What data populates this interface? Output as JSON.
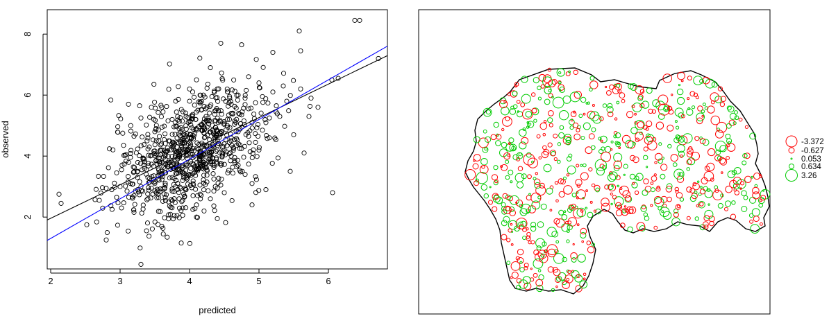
{
  "chart_data": [
    {
      "type": "scatter",
      "title": "",
      "xlabel": "predicted",
      "ylabel": "observed",
      "xlim": [
        1.95,
        6.85
      ],
      "ylim": [
        0.3,
        8.8
      ],
      "x_ticks": [
        2,
        3,
        4,
        5,
        6
      ],
      "y_ticks": [
        2,
        4,
        6,
        8
      ],
      "grid": false,
      "point_style": "open-circle",
      "point_color": "#000000",
      "series": [
        {
          "values": [
            [
              6.38,
              8.45
            ],
            [
              6.45,
              8.45
            ],
            [
              6.72,
              7.2
            ],
            [
              5.58,
              8.1
            ],
            [
              4.45,
              7.7
            ],
            [
              4.75,
              7.65
            ],
            [
              5.2,
              7.4
            ],
            [
              5.6,
              7.45
            ],
            [
              6.05,
              6.5
            ],
            [
              6.06,
              2.8
            ],
            [
              3.3,
              0.45
            ],
            [
              3.88,
              1.15
            ],
            [
              2.12,
              2.75
            ],
            [
              2.15,
              2.45
            ],
            [
              2.52,
              1.75
            ],
            [
              2.8,
              1.25
            ],
            [
              3.12,
              5.7
            ],
            [
              3.3,
              5.25
            ],
            [
              3.45,
              5.6
            ],
            [
              5.4,
              5.8
            ],
            [
              5.3,
              5.3
            ],
            [
              5.85,
              5.6
            ],
            [
              5.72,
              5.3
            ],
            [
              4.55,
              6.1
            ],
            [
              4.1,
              6.5
            ],
            [
              4.3,
              6.9
            ],
            [
              3.6,
              5.6
            ],
            [
              3.75,
              5.2
            ],
            [
              3.05,
              4.35
            ],
            [
              3.2,
              4.65
            ],
            [
              2.95,
              3.45
            ],
            [
              2.88,
              2.9
            ],
            [
              2.7,
              2.55
            ],
            [
              3.02,
              2.3
            ],
            [
              3.38,
              1.55
            ],
            [
              3.6,
              1.7
            ],
            [
              3.82,
              2.05
            ],
            [
              4.1,
              2.0
            ],
            [
              4.4,
              1.95
            ],
            [
              4.52,
              1.82
            ],
            [
              4.9,
              2.4
            ],
            [
              5.1,
              2.9
            ],
            [
              5.45,
              3.5
            ],
            [
              5.65,
              4.1
            ],
            [
              5.5,
              4.7
            ],
            [
              5.15,
              4.6
            ],
            [
              5.0,
              4.2
            ],
            [
              4.9,
              5.1
            ],
            [
              4.6,
              5.4
            ],
            [
              4.8,
              5.9
            ],
            [
              4.25,
              5.6
            ],
            [
              4.0,
              5.8
            ],
            [
              3.95,
              5.3
            ],
            [
              3.85,
              4.9
            ],
            [
              3.5,
              4.8
            ],
            [
              3.42,
              4.3
            ],
            [
              3.35,
              3.9
            ],
            [
              3.25,
              3.5
            ],
            [
              3.15,
              3.1
            ],
            [
              3.4,
              2.6
            ],
            [
              3.5,
              3.1
            ],
            [
              3.6,
              3.4
            ],
            [
              3.7,
              3.8
            ],
            [
              3.8,
              4.1
            ],
            [
              3.9,
              4.4
            ],
            [
              4.0,
              4.6
            ],
            [
              4.1,
              4.9
            ],
            [
              4.2,
              5.1
            ],
            [
              4.3,
              4.8
            ],
            [
              4.4,
              4.5
            ],
            [
              4.5,
              4.2
            ],
            [
              4.6,
              4.0
            ],
            [
              4.7,
              3.7
            ],
            [
              4.8,
              3.4
            ],
            [
              4.9,
              3.1
            ],
            [
              4.5,
              2.8
            ],
            [
              4.3,
              2.6
            ],
            [
              4.1,
              2.4
            ],
            [
              3.9,
              2.3
            ],
            [
              3.7,
              2.5
            ],
            [
              3.55,
              2.75
            ],
            [
              3.65,
              3.05
            ],
            [
              3.75,
              3.3
            ],
            [
              3.85,
              3.55
            ],
            [
              3.95,
              3.75
            ],
            [
              4.05,
              3.95
            ],
            [
              4.15,
              4.15
            ],
            [
              4.25,
              4.35
            ],
            [
              4.35,
              4.55
            ],
            [
              4.45,
              4.75
            ],
            [
              4.55,
              4.95
            ],
            [
              4.65,
              5.15
            ],
            [
              4.75,
              5.35
            ],
            [
              4.85,
              5.55
            ],
            [
              4.95,
              5.75
            ],
            [
              5.05,
              5.95
            ],
            [
              3.6,
              4.2
            ],
            [
              3.7,
              4.5
            ],
            [
              3.8,
              3.0
            ],
            [
              3.9,
              3.2
            ],
            [
              4.0,
              3.4
            ],
            [
              4.1,
              3.6
            ],
            [
              4.2,
              3.8
            ],
            [
              4.3,
              4.0
            ],
            [
              4.4,
              4.2
            ],
            [
              4.5,
              4.4
            ],
            [
              4.6,
              4.6
            ],
            [
              4.7,
              4.8
            ],
            [
              3.55,
              3.6
            ],
            [
              3.65,
              3.9
            ],
            [
              3.75,
              4.3
            ],
            [
              3.85,
              3.7
            ],
            [
              3.95,
              4.05
            ],
            [
              4.05,
              4.25
            ],
            [
              4.15,
              3.85
            ],
            [
              4.25,
              3.55
            ],
            [
              4.35,
              3.25
            ],
            [
              4.45,
              3.05
            ],
            [
              4.55,
              3.45
            ],
            [
              4.65,
              3.85
            ],
            [
              4.75,
              4.25
            ],
            [
              4.85,
              4.65
            ],
            [
              4.95,
              4.45
            ],
            [
              5.05,
              4.85
            ],
            [
              5.15,
              5.25
            ],
            [
              5.25,
              5.65
            ],
            [
              3.3,
              3.0
            ],
            [
              3.4,
              3.3
            ],
            [
              3.45,
              2.95
            ],
            [
              3.55,
              3.25
            ],
            [
              3.65,
              2.65
            ],
            [
              3.75,
              2.85
            ],
            [
              3.85,
              2.6
            ],
            [
              3.95,
              2.9
            ],
            [
              4.05,
              2.7
            ],
            [
              4.15,
              3.05
            ],
            [
              4.25,
              3.15
            ],
            [
              4.35,
              2.85
            ],
            [
              3.2,
              2.7
            ],
            [
              3.1,
              2.85
            ],
            [
              3.0,
              3.0
            ],
            [
              2.95,
              2.65
            ],
            [
              3.25,
              3.3
            ],
            [
              3.35,
              3.6
            ],
            [
              4.6,
              5.7
            ],
            [
              4.7,
              6.0
            ],
            [
              4.4,
              6.2
            ],
            [
              4.2,
              6.0
            ],
            [
              4.0,
              6.2
            ],
            [
              3.8,
              5.8
            ],
            [
              5.2,
              6.1
            ],
            [
              5.35,
              6.3
            ],
            [
              5.0,
              6.4
            ],
            [
              4.85,
              6.6
            ],
            [
              5.6,
              6.2
            ],
            [
              5.75,
              5.9
            ]
          ]
        }
      ],
      "lines": [
        {
          "color": "#000000",
          "intercept": -0.24,
          "slope": 1.1
        },
        {
          "color": "#0000ff",
          "intercept": -1.3,
          "slope": 1.3
        }
      ]
    },
    {
      "type": "bubble-map",
      "legend": {
        "placement": "right",
        "entries": [
          {
            "label": "-3.372",
            "value": -3.372,
            "color": "#ff0000"
          },
          {
            "label": "-0.627",
            "value": -0.627,
            "color": "#ff0000"
          },
          {
            "label": "0.053",
            "value": 0.053,
            "color": "#00cc00"
          },
          {
            "label": "0.634",
            "value": 0.634,
            "color": "#00cc00"
          },
          {
            "label": "3.26",
            "value": 3.26,
            "color": "#00cc00"
          }
        ]
      },
      "negative_color": "#ff0000",
      "positive_color": "#00cc00"
    }
  ]
}
